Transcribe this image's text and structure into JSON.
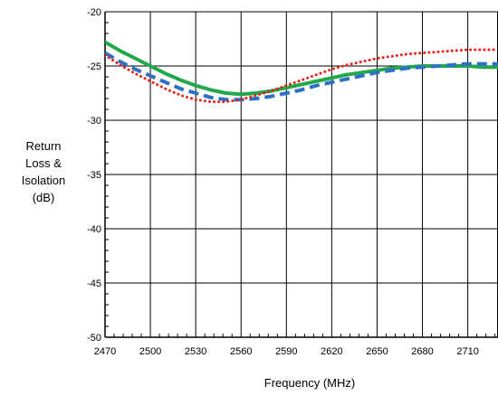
{
  "chart_data": {
    "type": "line",
    "title": "",
    "xlabel": "Frequency (MHz)",
    "ylabel_lines": [
      "Return",
      "Loss &",
      "Isolation",
      "(dB)"
    ],
    "xlim": [
      2470,
      2730
    ],
    "ylim": [
      -50,
      -20
    ],
    "x_ticks": [
      2470,
      2500,
      2530,
      2560,
      2590,
      2620,
      2650,
      2680,
      2710
    ],
    "y_ticks": [
      -20,
      -25,
      -30,
      -35,
      -40,
      -45,
      -50
    ],
    "grid": true,
    "legend": "none",
    "series": [
      {
        "style": "solid",
        "color": "#21a84a",
        "x": [
          2470,
          2480,
          2490,
          2500,
          2510,
          2520,
          2530,
          2540,
          2550,
          2560,
          2570,
          2580,
          2590,
          2600,
          2610,
          2620,
          2630,
          2640,
          2650,
          2660,
          2670,
          2680,
          2690,
          2700,
          2710,
          2720,
          2730
        ],
        "y": [
          -22.8,
          -23.6,
          -24.3,
          -25.0,
          -25.7,
          -26.3,
          -26.8,
          -27.2,
          -27.5,
          -27.6,
          -27.5,
          -27.3,
          -27.0,
          -26.7,
          -26.4,
          -26.1,
          -25.8,
          -25.6,
          -25.4,
          -25.2,
          -25.1,
          -25.0,
          -25.0,
          -25.0,
          -25.0,
          -25.1,
          -25.1
        ]
      },
      {
        "style": "dashed",
        "color": "#2d70c4",
        "x": [
          2470,
          2480,
          2490,
          2500,
          2510,
          2520,
          2530,
          2540,
          2550,
          2560,
          2570,
          2580,
          2590,
          2600,
          2610,
          2620,
          2630,
          2640,
          2650,
          2660,
          2670,
          2680,
          2690,
          2700,
          2710,
          2720,
          2730
        ],
        "y": [
          -23.8,
          -24.6,
          -25.3,
          -25.9,
          -26.5,
          -27.1,
          -27.5,
          -27.9,
          -28.1,
          -28.1,
          -28.0,
          -27.8,
          -27.5,
          -27.2,
          -26.8,
          -26.5,
          -26.2,
          -25.9,
          -25.6,
          -25.4,
          -25.2,
          -25.1,
          -25.0,
          -24.9,
          -24.8,
          -24.8,
          -24.8
        ]
      },
      {
        "style": "dotted",
        "color": "#e8221b",
        "x": [
          2470,
          2480,
          2490,
          2500,
          2510,
          2520,
          2530,
          2540,
          2550,
          2560,
          2570,
          2580,
          2590,
          2600,
          2610,
          2620,
          2630,
          2640,
          2650,
          2660,
          2670,
          2680,
          2690,
          2700,
          2710,
          2720,
          2730
        ],
        "y": [
          -24.0,
          -24.9,
          -25.7,
          -26.4,
          -27.1,
          -27.7,
          -28.1,
          -28.3,
          -28.3,
          -28.1,
          -27.7,
          -27.3,
          -26.8,
          -26.3,
          -25.8,
          -25.3,
          -24.9,
          -24.6,
          -24.3,
          -24.1,
          -23.9,
          -23.8,
          -23.7,
          -23.6,
          -23.5,
          -23.5,
          -23.5
        ]
      }
    ]
  }
}
